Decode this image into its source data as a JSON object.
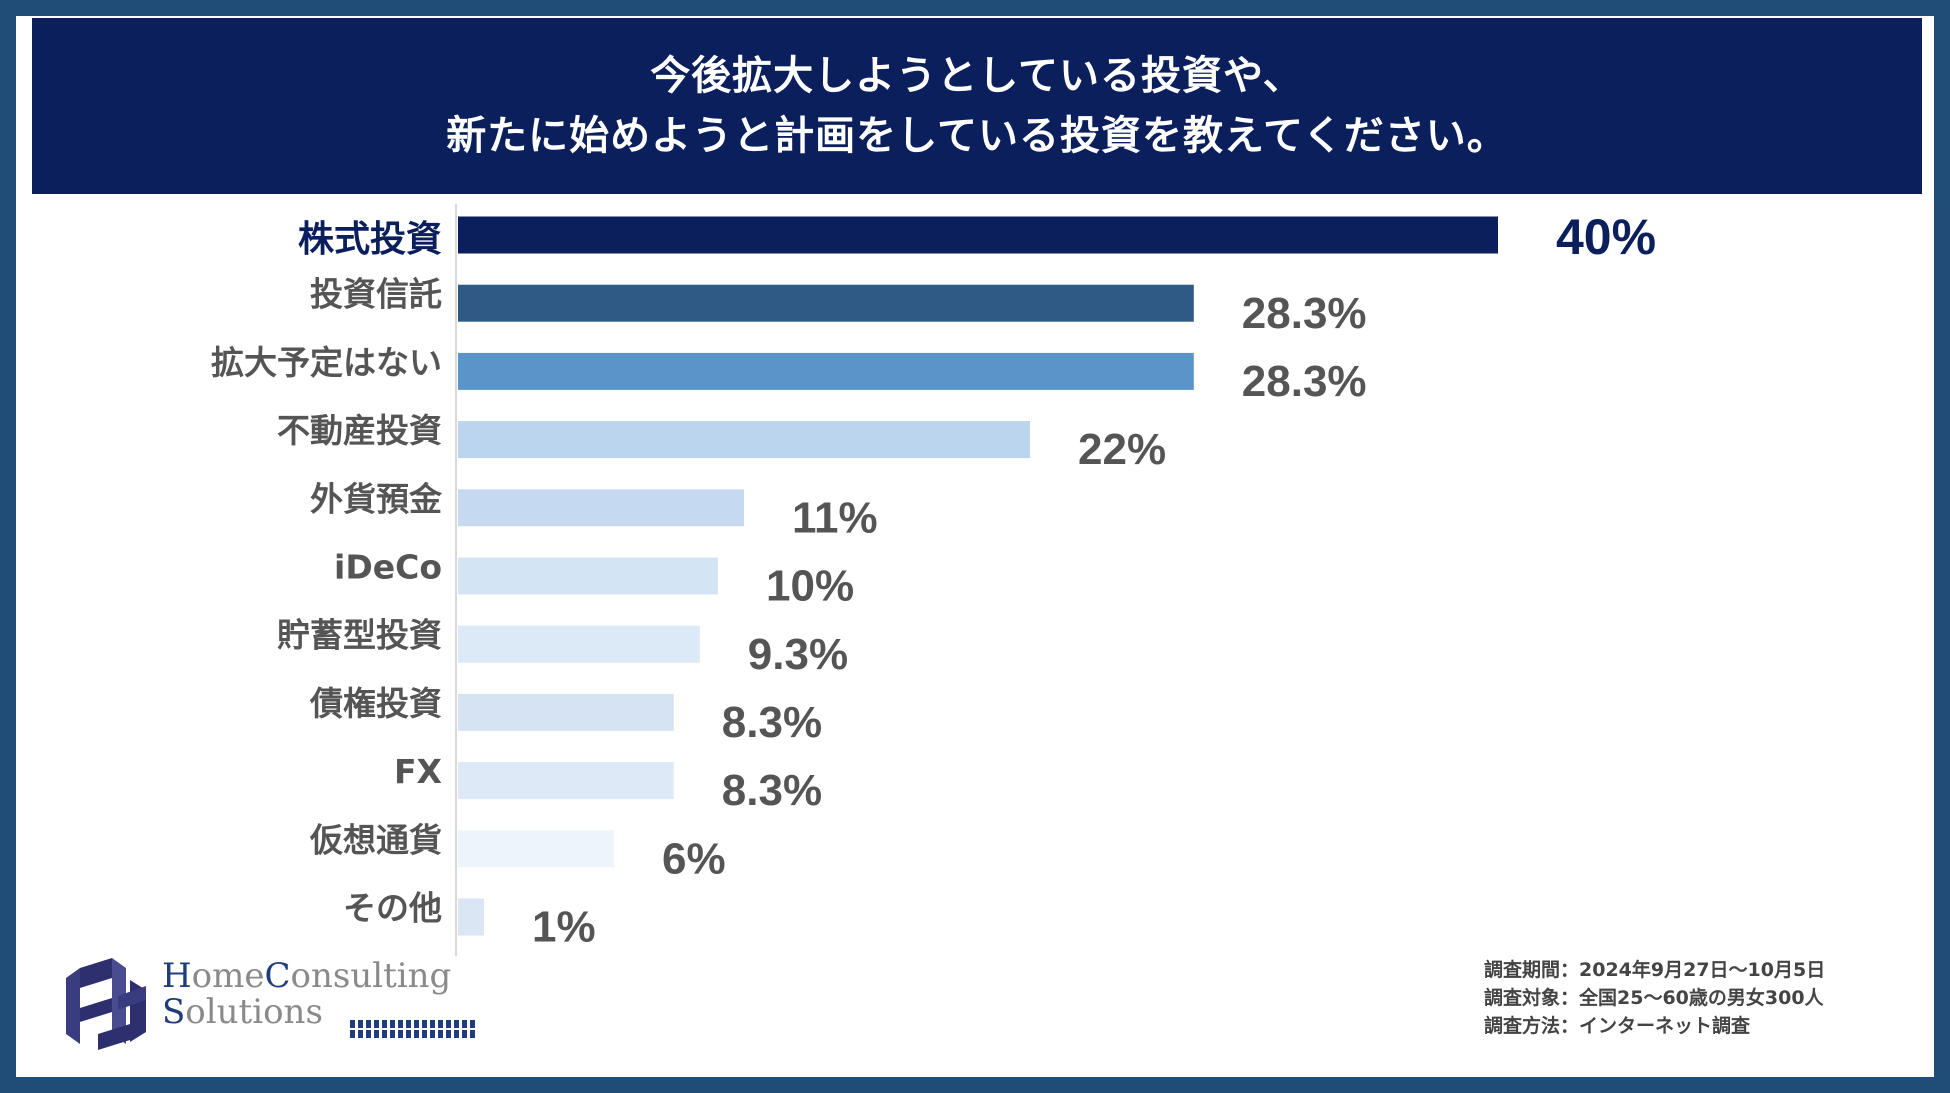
{
  "header": {
    "line1": "今後拡大しようとしている投資や、",
    "line2": "新たに始めようと計画をしている投資を教えてください。"
  },
  "chart_data": {
    "type": "bar",
    "orientation": "horizontal",
    "title": "今後拡大しようとしている投資や、新たに始めようと計画をしている投資を教えてください。",
    "categories": [
      "株式投資",
      "投資信託",
      "拡大予定はない",
      "不動産投資",
      "外貨預金",
      "iDeCo",
      "貯蓄型投資",
      "債権投資",
      "FX",
      "仮想通貨",
      "その他"
    ],
    "values": [
      40,
      28.3,
      28.3,
      22,
      11,
      10,
      9.3,
      8.3,
      8.3,
      6,
      1
    ],
    "value_labels": [
      "40%",
      "28.3%",
      "28.3%",
      "22%",
      "11%",
      "10%",
      "9.3%",
      "8.3%",
      "8.3%",
      "6%",
      "1%"
    ],
    "colors": [
      "#0a1f5c",
      "#2f5a85",
      "#5a94c8",
      "#bcd5ee",
      "#c5daf0",
      "#d3e4f4",
      "#dce9f6",
      "#d6e3f3",
      "#dde9f6",
      "#eef4fb",
      "#dbe6f4"
    ],
    "highlight_label_color": "#0a1f5c",
    "label_color": "#555555",
    "xlim": [
      0,
      40
    ]
  },
  "footnote": {
    "line1": "調査期間：2024年9月27日～10月5日",
    "line2": "調査対象：全国25～60歳の男女300人",
    "line3": "調査方法：インターネット調査"
  },
  "logo": {
    "part1_cap": "H",
    "part1_rest": "ome",
    "part2_cap": "C",
    "part2_rest": "onsulting",
    "part3_cap": "S",
    "part3_rest": "olutions"
  }
}
